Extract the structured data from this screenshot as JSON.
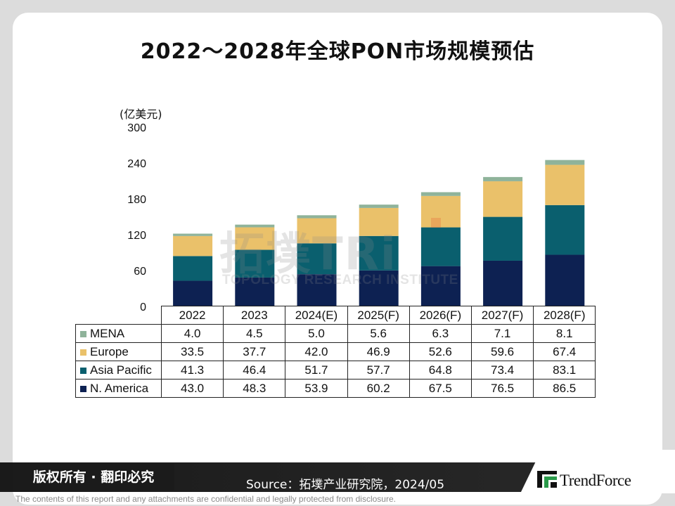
{
  "title": "2022～2028年全球PON市场规模预估",
  "chart_data": {
    "type": "bar",
    "stacked": true,
    "title": "2022～2028年全球PON市场规模预估",
    "ylabel": "(亿美元)",
    "ylim": [
      0,
      300
    ],
    "yticks": [
      "0",
      "60",
      "120",
      "180",
      "240",
      "300"
    ],
    "categories": [
      "2022",
      "2023",
      "2024(E)",
      "2025(F)",
      "2026(F)",
      "2027(F)",
      "2028(F)"
    ],
    "series": [
      {
        "name": "N. America",
        "color": "#0d2152",
        "values": [
          43.0,
          48.3,
          53.9,
          60.2,
          67.5,
          76.5,
          86.5
        ],
        "labels": [
          "43.0",
          "48.3",
          "53.9",
          "60.2",
          "67.5",
          "76.5",
          "86.5"
        ]
      },
      {
        "name": "Asia Pacific",
        "color": "#0a5f6e",
        "values": [
          41.3,
          46.4,
          51.7,
          57.7,
          64.8,
          73.4,
          83.1
        ],
        "labels": [
          "41.3",
          "46.4",
          "51.7",
          "57.7",
          "64.8",
          "73.4",
          "83.1"
        ]
      },
      {
        "name": "Europe",
        "color": "#eac16a",
        "values": [
          33.5,
          37.7,
          42.0,
          46.9,
          52.6,
          59.6,
          67.4
        ],
        "labels": [
          "33.5",
          "37.7",
          "42.0",
          "46.9",
          "52.6",
          "59.6",
          "67.4"
        ]
      },
      {
        "name": "MENA",
        "color": "#8fb39a",
        "values": [
          4.0,
          4.5,
          5.0,
          5.6,
          6.3,
          7.1,
          8.1
        ],
        "labels": [
          "4.0",
          "4.5",
          "5.0",
          "5.6",
          "6.3",
          "7.1",
          "8.1"
        ]
      }
    ],
    "table_row_order": [
      "MENA",
      "Europe",
      "Asia Pacific",
      "N. America"
    ]
  },
  "watermark": {
    "main": "拓墣TRi",
    "sub": "TOPOLOGY RESEARCH INSTITUTE"
  },
  "footer": {
    "copyright": "版权所有 · 翻印必究",
    "source": "Source：拓墣产业研究院，2024/05",
    "brand": "TrendForce",
    "disclaimer": "The contents of this report and any attachments are confidential and legally protected from disclosure."
  }
}
